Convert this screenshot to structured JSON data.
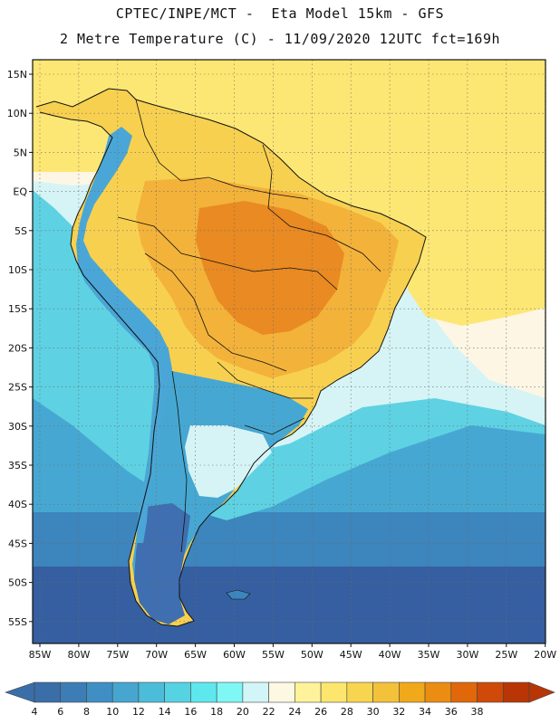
{
  "title_line1": "CPTEC/INPE/MCT -  Eta Model 15km - GFS",
  "title_line2": "2 Metre Temperature (C) - 11/09/2020 12UTC fct=169h",
  "lat_labels": [
    "15N",
    "10N",
    "5N",
    "EQ",
    "5S",
    "10S",
    "15S",
    "20S",
    "25S",
    "30S",
    "35S",
    "40S",
    "45S",
    "50S",
    "55S"
  ],
  "lon_labels": [
    "85W",
    "80W",
    "75W",
    "70W",
    "65W",
    "60W",
    "55W",
    "50W",
    "45W",
    "40W",
    "35W",
    "30W",
    "25W",
    "20W"
  ],
  "colorbar": {
    "labels": [
      "4",
      "6",
      "8",
      "10",
      "12",
      "14",
      "16",
      "18",
      "20",
      "22",
      "24",
      "26",
      "28",
      "30",
      "32",
      "34",
      "36",
      "38"
    ],
    "colors": [
      "#3a6ea8",
      "#3d7db6",
      "#3f8fc4",
      "#46a6cf",
      "#4cbdd8",
      "#56d3e2",
      "#5ee8ee",
      "#7ff7f5",
      "#d2f6f7",
      "#fdf8e2",
      "#fef39b",
      "#fde66d",
      "#f8d54e",
      "#f3c23a",
      "#f0a91a",
      "#ea8d12",
      "#e0680b",
      "#cf4a08",
      "#b83506"
    ],
    "left_arrow_color": "#3a6ea8",
    "right_arrow_color": "#b83506"
  },
  "map_colors": {
    "ocean_deep": "#355fa0",
    "ocean_mid": "#3d85bd",
    "ocean_cool": "#46a8d2",
    "ocean_warm": "#5ed2e3",
    "ocean_light": "#d6f4f5",
    "ocean_pale": "#fdf6e4",
    "atl_tropical": "#fde774",
    "land_hot": "#e98a22",
    "land_warm": "#f3b23a",
    "land_mild": "#f8d050",
    "andes": "#4aa6d6",
    "patagonia": "#3f6fb0",
    "border": "#111111"
  }
}
